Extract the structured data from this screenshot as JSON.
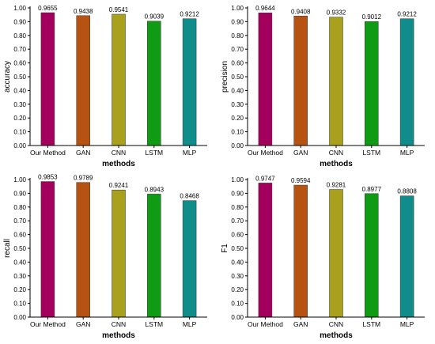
{
  "chart_data": [
    {
      "type": "bar",
      "title": "",
      "xlabel": "methods",
      "ylabel": "accuracy",
      "ylim": [
        0,
        1.0
      ],
      "yticks": [
        "0.00",
        "0.10",
        "0.20",
        "0.30",
        "0.40",
        "0.50",
        "0.60",
        "0.70",
        "0.80",
        "0.90",
        "1.00"
      ],
      "categories": [
        "Our Method",
        "GAN",
        "CNN",
        "LSTM",
        "MLP"
      ],
      "values": [
        0.9655,
        0.9438,
        0.9541,
        0.9039,
        0.9212
      ],
      "value_labels": [
        "0.9655",
        "0.9438",
        "0.9541",
        "0.9039",
        "0.9212"
      ],
      "colors": [
        "#a3005e",
        "#b75312",
        "#a9a01d",
        "#0f9b14",
        "#108c8a"
      ]
    },
    {
      "type": "bar",
      "title": "",
      "xlabel": "methods",
      "ylabel": "precision",
      "ylim": [
        0,
        1.0
      ],
      "yticks": [
        "0.00",
        "0.10",
        "0.20",
        "0.30",
        "0.40",
        "0.50",
        "0.60",
        "0.70",
        "0.80",
        "0.90",
        "1.00"
      ],
      "categories": [
        "Our Method",
        "GAN",
        "CNN",
        "LSTM",
        "MLP"
      ],
      "values": [
        0.9644,
        0.9408,
        0.9332,
        0.9012,
        0.9212
      ],
      "value_labels": [
        "0.9644",
        "0.9408",
        "0.9332",
        "0.9012",
        "0.9212"
      ],
      "colors": [
        "#a3005e",
        "#b75312",
        "#a9a01d",
        "#0f9b14",
        "#108c8a"
      ]
    },
    {
      "type": "bar",
      "title": "",
      "xlabel": "methods",
      "ylabel": "recall",
      "ylim": [
        0,
        1.0
      ],
      "yticks": [
        "0.00",
        "0.10",
        "0.20",
        "0.30",
        "0.40",
        "0.50",
        "0.60",
        "0.70",
        "0.80",
        "0.90",
        "1.00"
      ],
      "categories": [
        "Our Method",
        "GAN",
        "CNN",
        "LSTM",
        "MLP"
      ],
      "values": [
        0.9853,
        0.9789,
        0.9241,
        0.8943,
        0.8468
      ],
      "value_labels": [
        "0.9853",
        "0.9789",
        "0.9241",
        "0.8943",
        "0.8468"
      ],
      "colors": [
        "#a3005e",
        "#b75312",
        "#a9a01d",
        "#0f9b14",
        "#108c8a"
      ]
    },
    {
      "type": "bar",
      "title": "",
      "xlabel": "methods",
      "ylabel": "F1",
      "ylim": [
        0,
        1.0
      ],
      "yticks": [
        "0.00",
        "0.10",
        "0.20",
        "0.30",
        "0.40",
        "0.50",
        "0.60",
        "0.70",
        "0.80",
        "0.90",
        "1.00"
      ],
      "categories": [
        "Our Method",
        "GAN",
        "CNN",
        "LSTM",
        "MLP"
      ],
      "values": [
        0.9747,
        0.9594,
        0.9281,
        0.8977,
        0.8808
      ],
      "value_labels": [
        "0.9747",
        "0.9594",
        "0.9281",
        "0.8977",
        "0.8808"
      ],
      "colors": [
        "#a3005e",
        "#b75312",
        "#a9a01d",
        "#0f9b14",
        "#108c8a"
      ]
    }
  ]
}
